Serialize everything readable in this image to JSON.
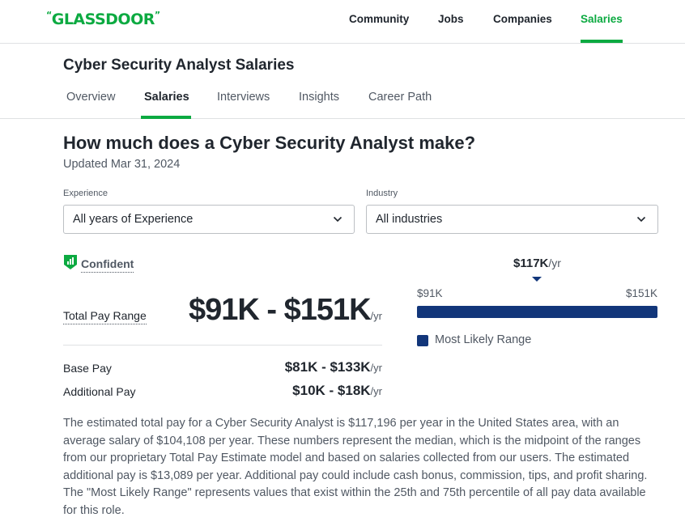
{
  "brand": {
    "logo_text": "GLASSDOOR",
    "logo_quote_open": "“",
    "logo_quote_close": "”",
    "accent": "#0caa41",
    "bar_color": "#12367a"
  },
  "topnav": {
    "items": [
      {
        "label": "Community"
      },
      {
        "label": "Jobs"
      },
      {
        "label": "Companies"
      },
      {
        "label": "Salaries",
        "active": true
      }
    ]
  },
  "page": {
    "title": "Cyber Security Analyst Salaries",
    "tabs": [
      {
        "label": "Overview"
      },
      {
        "label": "Salaries",
        "active": true
      },
      {
        "label": "Interviews"
      },
      {
        "label": "Insights"
      },
      {
        "label": "Career Path"
      }
    ]
  },
  "main": {
    "heading": "How much does a Cyber Security Analyst make?",
    "updated": "Updated Mar 31, 2024"
  },
  "filters": {
    "experience": {
      "label": "Experience",
      "value": "All years of Experience"
    },
    "industry": {
      "label": "Industry",
      "value": "All industries"
    }
  },
  "confidence": {
    "label": "Confident",
    "icon": "bar-chart-shield-icon"
  },
  "pay": {
    "total_label": "Total Pay Range",
    "total_value": "$91K - $151K",
    "per": "/yr",
    "base_label": "Base Pay",
    "base_value": "$81K - $133K",
    "additional_label": "Additional Pay",
    "additional_value": "$10K - $18K"
  },
  "range": {
    "median": "$117K",
    "per": "/yr",
    "low": "$91K",
    "high": "$151K",
    "legend": "Most Likely Range"
  },
  "description": "The estimated total pay for a Cyber Security Analyst is $117,196 per year in the United States area, with an average salary of $104,108 per year. These numbers represent the median, which is the midpoint of the ranges from our proprietary Total Pay Estimate model and based on salaries collected from our users. The estimated additional pay is $13,089 per year. Additional pay could include cash bonus, commission, tips, and profit sharing. The \"Most Likely Range\" represents values that exist within the 25th and 75th percentile of all pay data available for this role."
}
